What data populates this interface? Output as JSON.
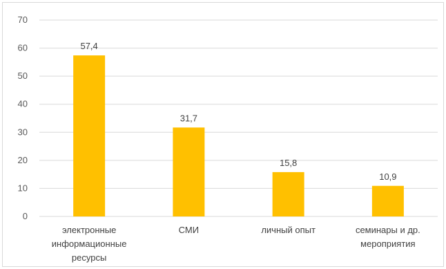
{
  "chart_data": {
    "type": "bar",
    "categories": [
      [
        "электронные",
        "информационные",
        "ресурсы"
      ],
      [
        "СМИ"
      ],
      [
        "личный опыт"
      ],
      [
        "семинары и др.",
        "мероприятия"
      ]
    ],
    "values": [
      57.4,
      31.7,
      15.8,
      10.9
    ],
    "value_labels": [
      "57,4",
      "31,7",
      "15,8",
      "10,9"
    ],
    "yticks": [
      0,
      10,
      20,
      30,
      40,
      50,
      60,
      70
    ],
    "ylim": [
      0,
      70
    ],
    "grid": true,
    "bar_color": "#FFC000",
    "grid_color": "#D9D9D9"
  }
}
